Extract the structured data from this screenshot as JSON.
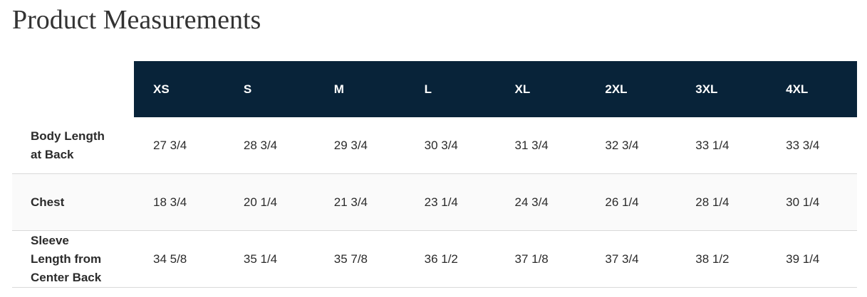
{
  "header": {
    "title": "Product Measurements"
  },
  "table": {
    "columns": [
      "XS",
      "S",
      "M",
      "L",
      "XL",
      "2XL",
      "3XL",
      "4XL"
    ],
    "rows": [
      {
        "label": "Body Length at Back",
        "values": [
          "27 3/4",
          "28 3/4",
          "29 3/4",
          "30 3/4",
          "31 3/4",
          "32 3/4",
          "33 1/4",
          "33 3/4"
        ]
      },
      {
        "label": "Chest",
        "values": [
          "18 3/4",
          "20 1/4",
          "21 3/4",
          "23 1/4",
          "24 3/4",
          "26 1/4",
          "28 1/4",
          "30 1/4"
        ]
      },
      {
        "label": "Sleeve Length from Center Back",
        "values": [
          "34 5/8",
          "35 1/4",
          "35 7/8",
          "36 1/2",
          "37 1/8",
          "37 3/4",
          "38 1/2",
          "39 1/4"
        ]
      }
    ]
  }
}
